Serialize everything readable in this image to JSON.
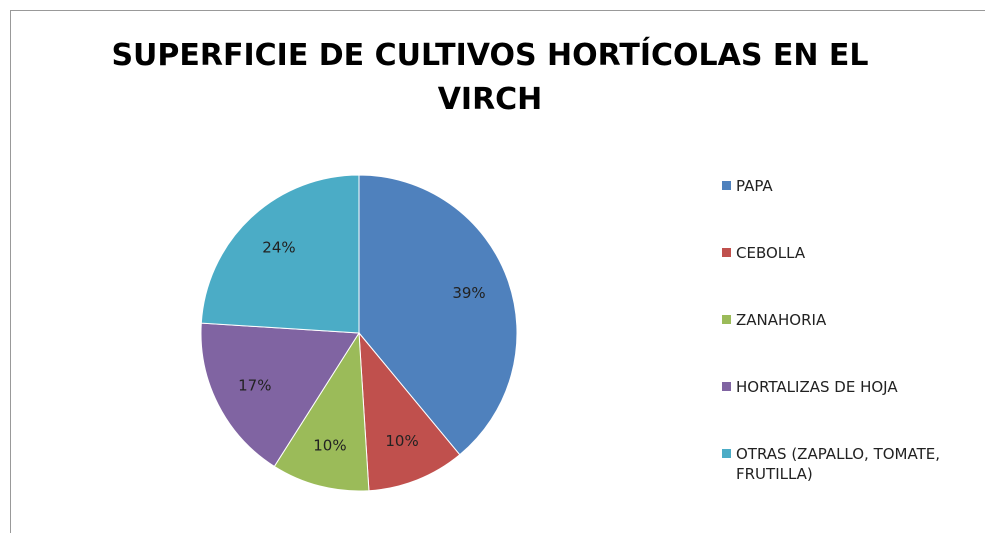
{
  "chart_data": {
    "type": "pie",
    "title": "SUPERFICIE DE CULTIVOS HORTÍCOLAS EN EL VIRCH",
    "categories": [
      "PAPA",
      "CEBOLLA",
      "ZANAHORIA",
      "HORTALIZAS DE HOJA",
      "OTRAS (ZAPALLO, TOMATE, FRUTILLA)"
    ],
    "values": [
      39,
      10,
      10,
      17,
      24
    ],
    "value_labels": [
      "39%",
      "10%",
      "10%",
      "17%",
      "24%"
    ],
    "colors": [
      "#4f81bd",
      "#c0504d",
      "#9bbb59",
      "#8064a2",
      "#4bacc6"
    ],
    "legend": "right"
  }
}
